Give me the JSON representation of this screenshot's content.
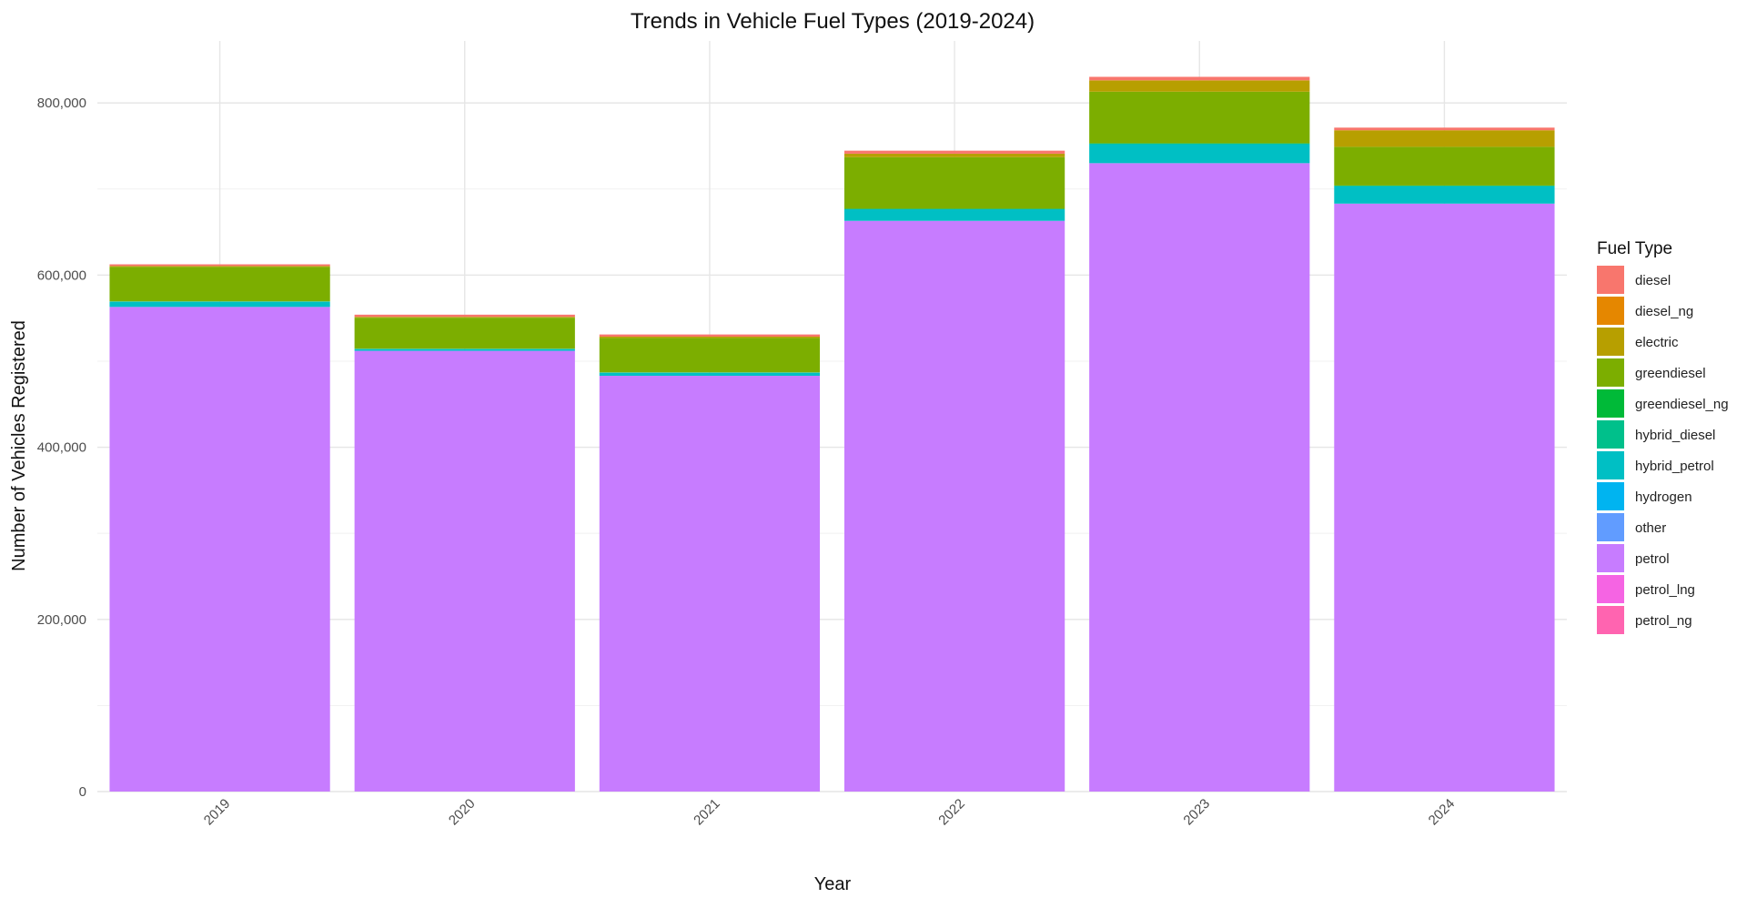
{
  "chart_data": {
    "type": "bar",
    "stacked": true,
    "title": "Trends in Vehicle Fuel Types (2019-2024)",
    "xlabel": "Year",
    "ylabel": "Number of Vehicles Registered",
    "categories": [
      "2019",
      "2020",
      "2021",
      "2022",
      "2023",
      "2024"
    ],
    "ylim": [
      0,
      872000
    ],
    "yticks": [
      0,
      200000,
      400000,
      600000,
      800000
    ],
    "ytick_labels": [
      "0",
      "200,000",
      "400,000",
      "600,000",
      "800,000"
    ],
    "grid": true,
    "legend_title": "Fuel Type",
    "legend_position": "right",
    "series": [
      {
        "name": "diesel",
        "color": "#F8766D",
        "values": [
          2000,
          2500,
          2500,
          3500,
          4000,
          3000
        ]
      },
      {
        "name": "diesel_ng",
        "color": "#E58700",
        "values": [
          0,
          0,
          0,
          0,
          300,
          300
        ]
      },
      {
        "name": "electric",
        "color": "#B79F00",
        "values": [
          1000,
          1000,
          1500,
          4000,
          13000,
          19000
        ]
      },
      {
        "name": "greendiesel",
        "color": "#7CAE00",
        "values": [
          40000,
          36000,
          40000,
          60000,
          60000,
          45000
        ]
      },
      {
        "name": "greendiesel_ng",
        "color": "#00BA38",
        "values": [
          0,
          0,
          0,
          0,
          0,
          0
        ]
      },
      {
        "name": "hybrid_diesel",
        "color": "#00C08B",
        "values": [
          500,
          500,
          500,
          500,
          1000,
          1000
        ]
      },
      {
        "name": "hybrid_petrol",
        "color": "#00BFC4",
        "values": [
          6000,
          2000,
          3500,
          13500,
          22000,
          20000
        ]
      },
      {
        "name": "hydrogen",
        "color": "#00B4F0",
        "values": [
          0,
          0,
          0,
          0,
          0,
          0
        ]
      },
      {
        "name": "other",
        "color": "#619CFF",
        "values": [
          0,
          0,
          0,
          0,
          0,
          0
        ]
      },
      {
        "name": "petrol",
        "color": "#C77CFF",
        "values": [
          563000,
          512000,
          483000,
          663000,
          730000,
          683000
        ]
      },
      {
        "name": "petrol_lng",
        "color": "#F564E3",
        "values": [
          0,
          0,
          0,
          0,
          0,
          0
        ]
      },
      {
        "name": "petrol_ng",
        "color": "#FF64B0",
        "values": [
          0,
          0,
          0,
          0,
          0,
          0
        ]
      }
    ]
  }
}
